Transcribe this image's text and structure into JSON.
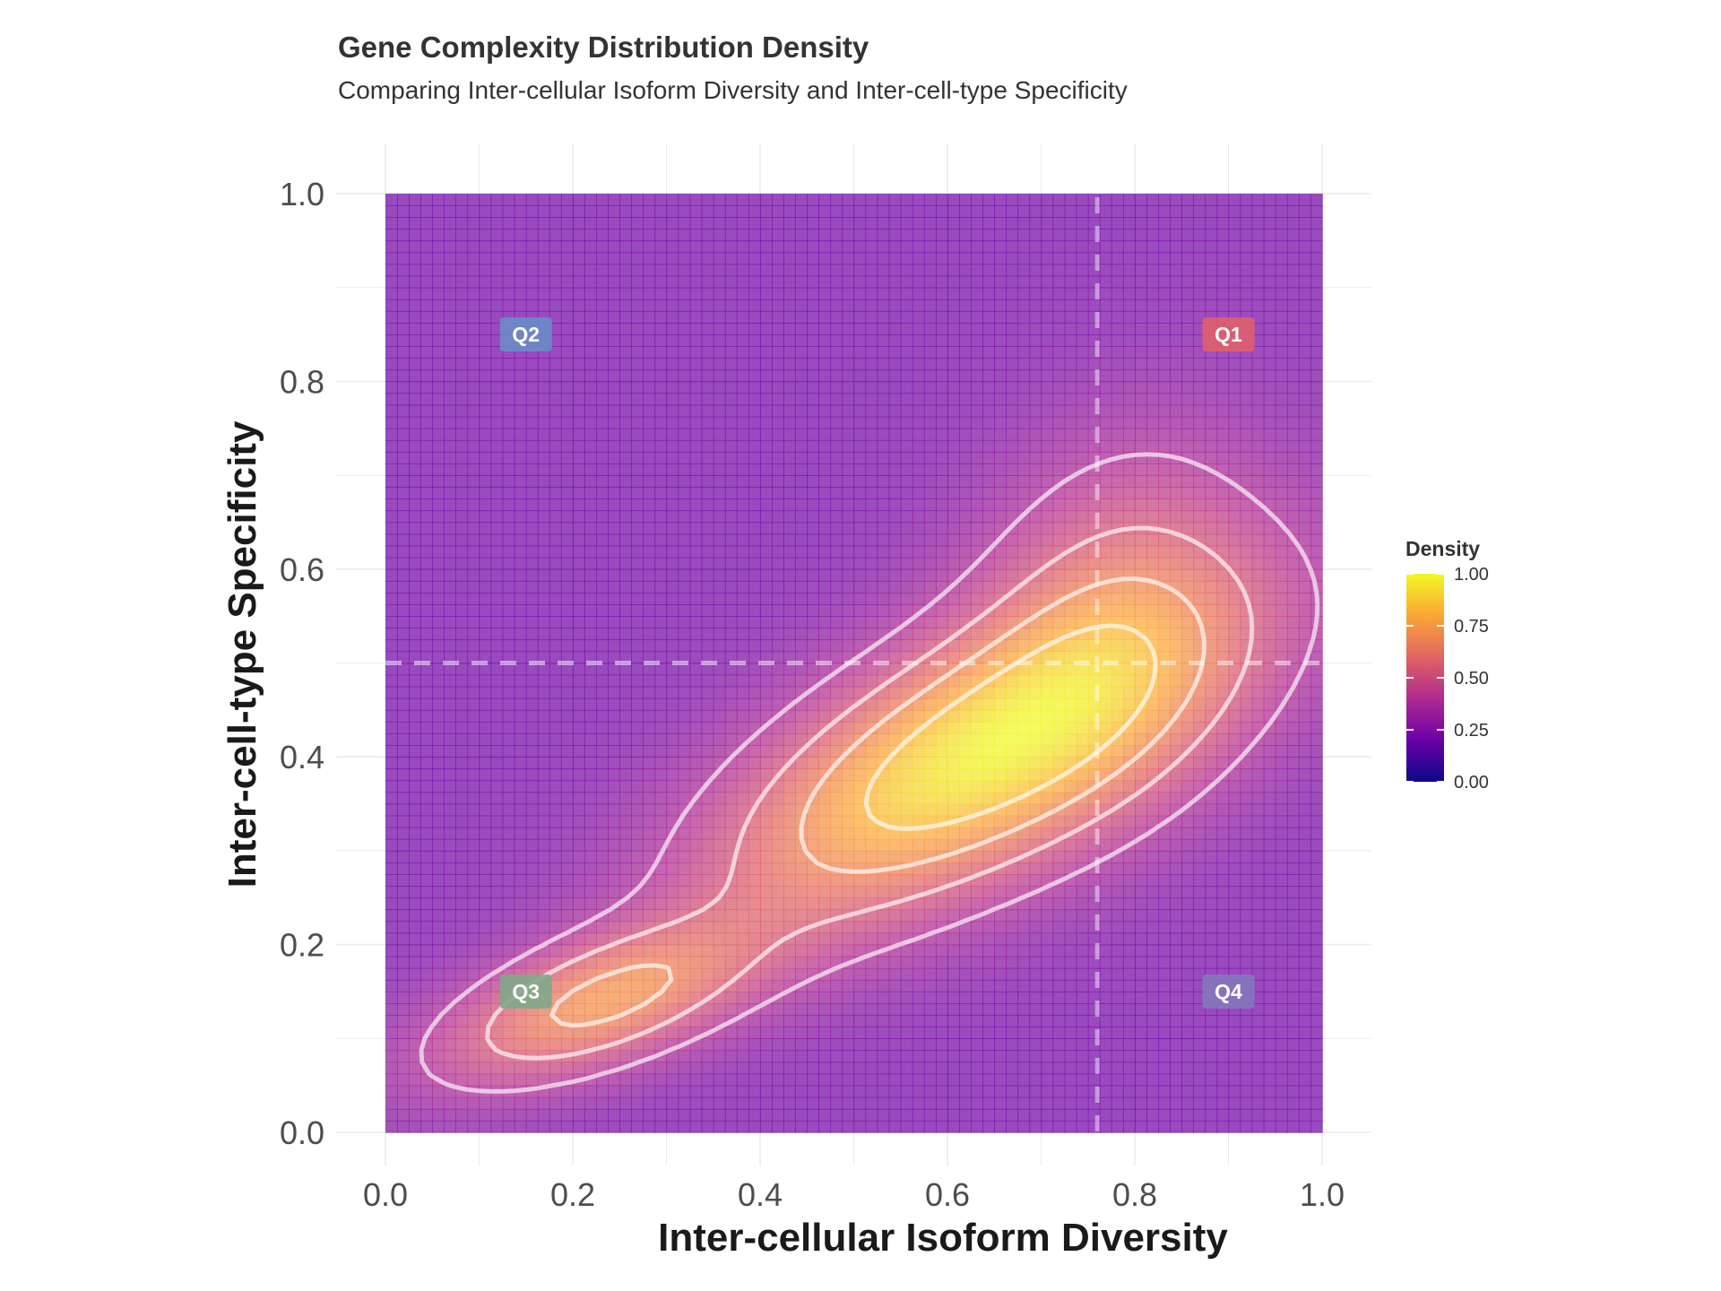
{
  "chart_data": {
    "type": "heatmap",
    "title": "Gene Complexity Distribution Density",
    "subtitle": "Comparing Inter-cellular Isoform Diversity and Inter-cell-type Specificity",
    "xlabel": "Inter-cellular Isoform Diversity",
    "ylabel": "Inter-cell-type Specificity",
    "xlim": [
      0,
      1
    ],
    "ylim": [
      0,
      1
    ],
    "x_ticks": [
      "0.0",
      "0.2",
      "0.4",
      "0.6",
      "0.8",
      "1.0"
    ],
    "y_ticks": [
      "0.0",
      "0.2",
      "0.4",
      "0.6",
      "0.8",
      "1.0"
    ],
    "grid": true,
    "legend": {
      "title": "Density",
      "position": "right",
      "ticks": [
        "1.00",
        "0.75",
        "0.50",
        "0.25",
        "0.00"
      ],
      "colors": [
        "#0d0887",
        "#6a00a8",
        "#b12a90",
        "#e16462",
        "#fca636",
        "#f0f921"
      ]
    },
    "reference_lines": {
      "vertical_x": 0.76,
      "horizontal_y": 0.5
    },
    "density_peaks": [
      {
        "x": 0.63,
        "y": 0.4,
        "sx": 0.17,
        "sy": 0.11,
        "rho": 0.65,
        "weight": 1.0
      },
      {
        "x": 0.23,
        "y": 0.14,
        "sx": 0.11,
        "sy": 0.055,
        "rho": 0.6,
        "weight": 0.6
      },
      {
        "x": 0.78,
        "y": 0.55,
        "sx": 0.1,
        "sy": 0.12,
        "rho": 0.2,
        "weight": 0.35
      }
    ],
    "quadrants": [
      {
        "label": "Q1",
        "x": 0.9,
        "y": 0.85,
        "color": "#e0606a"
      },
      {
        "label": "Q2",
        "x": 0.15,
        "y": 0.85,
        "color": "#6c8cc6"
      },
      {
        "label": "Q3",
        "x": 0.15,
        "y": 0.15,
        "color": "#7fa88a"
      },
      {
        "label": "Q4",
        "x": 0.9,
        "y": 0.15,
        "color": "#8478bb"
      }
    ]
  }
}
